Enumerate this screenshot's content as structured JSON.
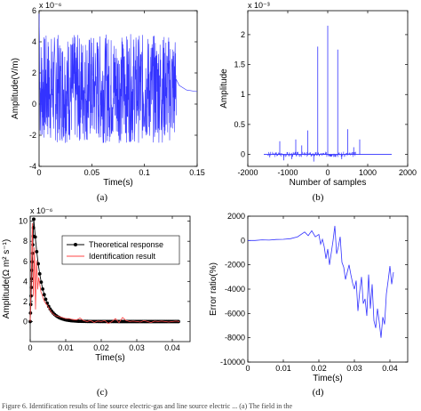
{
  "caption": "Figure 6. Identification results of line source electric-gas and line source electric ... (a) The field in the",
  "chart_data": [
    {
      "id": "a",
      "panel_label": "(a)",
      "type": "line",
      "xlabel": "Time(s)",
      "ylabel": "Amplitude(V/m)",
      "multiplier": "x 10⁻⁶",
      "xlim": [
        0,
        0.15
      ],
      "ylim": [
        -4,
        6
      ],
      "xticks": [
        0,
        0.05,
        0.1,
        0.15
      ],
      "yticks": [
        -4,
        -2,
        0,
        2,
        4,
        6
      ],
      "xtick_labels": [
        "0",
        "0.05",
        "0.1",
        "0.15"
      ],
      "ytick_labels": [
        "-4",
        "-2",
        "0",
        "2",
        "4",
        "6"
      ],
      "color": "#3333ff",
      "signal": {
        "start": 0,
        "end": 0.13,
        "min": -2.5,
        "max": 4.5,
        "spike_start_value": 5.8,
        "tail": [
          [
            0.13,
            1.6
          ],
          [
            0.133,
            1.2
          ],
          [
            0.14,
            0.9
          ],
          [
            0.15,
            0.8
          ]
        ]
      }
    },
    {
      "id": "b",
      "panel_label": "(b)",
      "type": "stem",
      "xlabel": "Number of samples",
      "ylabel": "Amplitude",
      "multiplier": "x 10⁻³",
      "xlim": [
        -2000,
        2000
      ],
      "ylim": [
        -0.2,
        2.4
      ],
      "xticks": [
        -2000,
        -1000,
        0,
        1000,
        2000
      ],
      "yticks": [
        0,
        0.5,
        1,
        1.5,
        2
      ],
      "xtick_labels": [
        "-2000",
        "-1000",
        "0",
        "1000",
        "2000"
      ],
      "ytick_labels": [
        "0",
        "0.5",
        "1",
        "1.5",
        "2"
      ],
      "color": "#3333ff",
      "x": [
        -1200,
        -800,
        -500,
        -250,
        0,
        250,
        500,
        800,
        -1450,
        -1100,
        -900,
        -650,
        -350,
        350,
        650
      ],
      "y": [
        0.22,
        0.25,
        0.4,
        1.8,
        2.15,
        1.75,
        0.42,
        0.25,
        -0.05,
        -0.1,
        -0.08,
        0.15,
        -0.12,
        -0.08,
        0.12
      ],
      "noise_range": [
        -1500,
        700
      ],
      "baseline_range": [
        -1600,
        1600
      ]
    },
    {
      "id": "c",
      "panel_label": "(c)",
      "type": "line",
      "xlabel": "Time(s)",
      "ylabel": "Amplitude(Ω m² s⁻¹)",
      "multiplier": "x 10⁻⁶",
      "xlim": [
        0,
        0.045
      ],
      "ylim": [
        -2,
        10.5
      ],
      "xticks": [
        0,
        0.01,
        0.02,
        0.03,
        0.04
      ],
      "yticks": [
        0,
        2,
        4,
        6,
        8,
        10
      ],
      "xtick_labels": [
        "0",
        "0.01",
        "0.02",
        "0.03",
        "0.04"
      ],
      "ytick_labels": [
        "0",
        "2",
        "4",
        "6",
        "8",
        "10"
      ],
      "legend_position": "top-right",
      "series": [
        {
          "name": "Theoretical response",
          "color": "#000000",
          "style": "line-dots",
          "peak": [
            0.001,
            10.2
          ],
          "decay_tau": 0.0022,
          "x_end": 0.042
        },
        {
          "name": "Identification result",
          "color": "#ff4444",
          "style": "line",
          "x": [
            0,
            0.0003,
            0.0006,
            0.0009,
            0.0012,
            0.0015,
            0.0018,
            0.0021,
            0.0024,
            0.003,
            0.004,
            0.005,
            0.006,
            0.007,
            0.008,
            0.009,
            0.01,
            0.011,
            0.012,
            0.013,
            0.014,
            0.015,
            0.016,
            0.017,
            0.018,
            0.019,
            0.02,
            0.021,
            0.022,
            0.023,
            0.024,
            0.025,
            0.026,
            0.027,
            0.028,
            0.029,
            0.03,
            0.031,
            0.032,
            0.033,
            0.034,
            0.035,
            0.036,
            0.037,
            0.038,
            0.039,
            0.04,
            0.041,
            0.042
          ],
          "y": [
            0,
            4.5,
            9.8,
            2.5,
            7.4,
            1.2,
            6.1,
            3.2,
            4.4,
            3.0,
            2.0,
            1.5,
            0.9,
            0.6,
            0.5,
            0.4,
            0.3,
            0.3,
            0.2,
            0.15,
            0.35,
            0.1,
            0.0,
            0.1,
            -0.1,
            0.05,
            0.0,
            0.1,
            -0.2,
            0.0,
            0.3,
            -0.1,
            0.4,
            0.1,
            0.0,
            0.05,
            0.0,
            -0.05,
            0.1,
            0.0,
            -0.1,
            0.05,
            0.0,
            0.05,
            0.0,
            -0.05,
            0.0,
            0.05,
            0.0
          ]
        }
      ]
    },
    {
      "id": "d",
      "panel_label": "(d)",
      "type": "line",
      "xlabel": "Time(s)",
      "ylabel": "Error ratio(%)",
      "xlim": [
        0,
        0.045
      ],
      "ylim": [
        -10000,
        2000
      ],
      "xticks": [
        0,
        0.01,
        0.02,
        0.03,
        0.04
      ],
      "yticks": [
        -10000,
        -8000,
        -6000,
        -4000,
        -2000,
        0,
        2000
      ],
      "xtick_labels": [
        "0",
        "0.01",
        "0.02",
        "0.03",
        "0.04"
      ],
      "ytick_labels": [
        "-10000",
        "-8000",
        "-6000",
        "-4000",
        "-2000",
        "0",
        "2000"
      ],
      "color": "#3333ff",
      "x": [
        0,
        0.002,
        0.004,
        0.006,
        0.008,
        0.01,
        0.012,
        0.014,
        0.016,
        0.017,
        0.018,
        0.019,
        0.02,
        0.0205,
        0.021,
        0.0215,
        0.022,
        0.0225,
        0.023,
        0.0235,
        0.024,
        0.0245,
        0.025,
        0.0255,
        0.026,
        0.0265,
        0.027,
        0.0275,
        0.028,
        0.0285,
        0.029,
        0.0295,
        0.03,
        0.0305,
        0.031,
        0.0315,
        0.032,
        0.0325,
        0.033,
        0.0335,
        0.034,
        0.0345,
        0.035,
        0.0355,
        0.036,
        0.0365,
        0.037,
        0.0375,
        0.038,
        0.0385,
        0.039,
        0.0395,
        0.04,
        0.0405,
        0.041
      ],
      "y": [
        0,
        0,
        50,
        30,
        80,
        100,
        150,
        300,
        700,
        400,
        800,
        300,
        500,
        -300,
        100,
        -500,
        -1500,
        -700,
        -2000,
        -1000,
        0,
        1200,
        -1100,
        -500,
        300,
        -1800,
        -2200,
        -3200,
        -2600,
        -2000,
        -2800,
        -3500,
        -4000,
        -3300,
        -5800,
        -4200,
        -3000,
        -5200,
        -4800,
        -6200,
        -2800,
        -5600,
        -3600,
        -6600,
        -7200,
        -5600,
        -6700,
        -8000,
        -6300,
        -6900,
        -4400,
        -3300,
        -2100,
        -3600,
        -2600
      ]
    }
  ]
}
